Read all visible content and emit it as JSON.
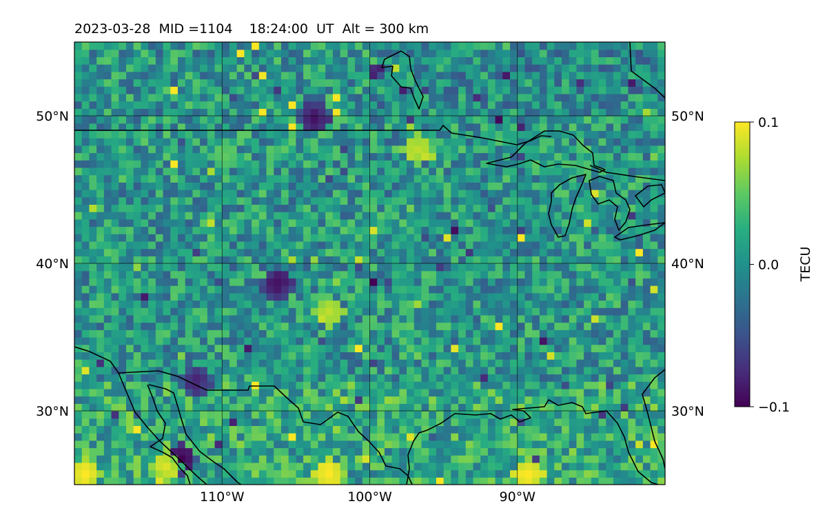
{
  "chart_data": {
    "type": "heatmap",
    "title": "2023-03-28  MID =1104    18:24:00  UT  Alt = 300 km",
    "projection": "lon-lat map with coastlines and borders",
    "xlim_lon_deg": [
      -120,
      -80
    ],
    "ylim_lat_deg": [
      25,
      55
    ],
    "x_ticks": [
      {
        "value": -110,
        "label": "110°W"
      },
      {
        "value": -100,
        "label": "100°W"
      },
      {
        "value": -90,
        "label": "90°W"
      }
    ],
    "y_ticks": [
      {
        "value": 30,
        "label": "30°N"
      },
      {
        "value": 40,
        "label": "40°N"
      },
      {
        "value": 50,
        "label": "50°N"
      }
    ],
    "grid": true,
    "colormap": "viridis",
    "colorbar": {
      "label": "TECU",
      "vmin": -0.1,
      "vmax": 0.1,
      "ticks": [
        {
          "value": 0.1,
          "label": "0.1"
        },
        {
          "value": 0.0,
          "label": "0.0"
        },
        {
          "value": -0.1,
          "label": "−0.1"
        }
      ],
      "placement": "right"
    },
    "cell_size_deg": 0.5,
    "field_description_features": [
      {
        "lon": -104.0,
        "lat": 49.6,
        "value": -0.09
      },
      {
        "lon": -106.5,
        "lat": 38.4,
        "value": -0.09
      },
      {
        "lon": -113.0,
        "lat": 26.5,
        "value": -0.1
      },
      {
        "lon": -112.0,
        "lat": 31.8,
        "value": -0.08
      },
      {
        "lon": -119.5,
        "lat": 25.5,
        "value": 0.1
      },
      {
        "lon": -103.0,
        "lat": 25.5,
        "value": 0.1
      },
      {
        "lon": -89.5,
        "lat": 25.5,
        "value": 0.1
      },
      {
        "lon": -114.0,
        "lat": 26.0,
        "value": 0.09
      },
      {
        "lon": -103.0,
        "lat": 36.5,
        "value": 0.08
      },
      {
        "lon": -97.0,
        "lat": 47.5,
        "value": 0.08
      },
      {
        "lon": -110.0,
        "lat": 47.0,
        "value": 0.05
      }
    ]
  },
  "colors": {
    "map_frame": "#000000",
    "gridline": "#000000",
    "coastline": "#000000"
  }
}
